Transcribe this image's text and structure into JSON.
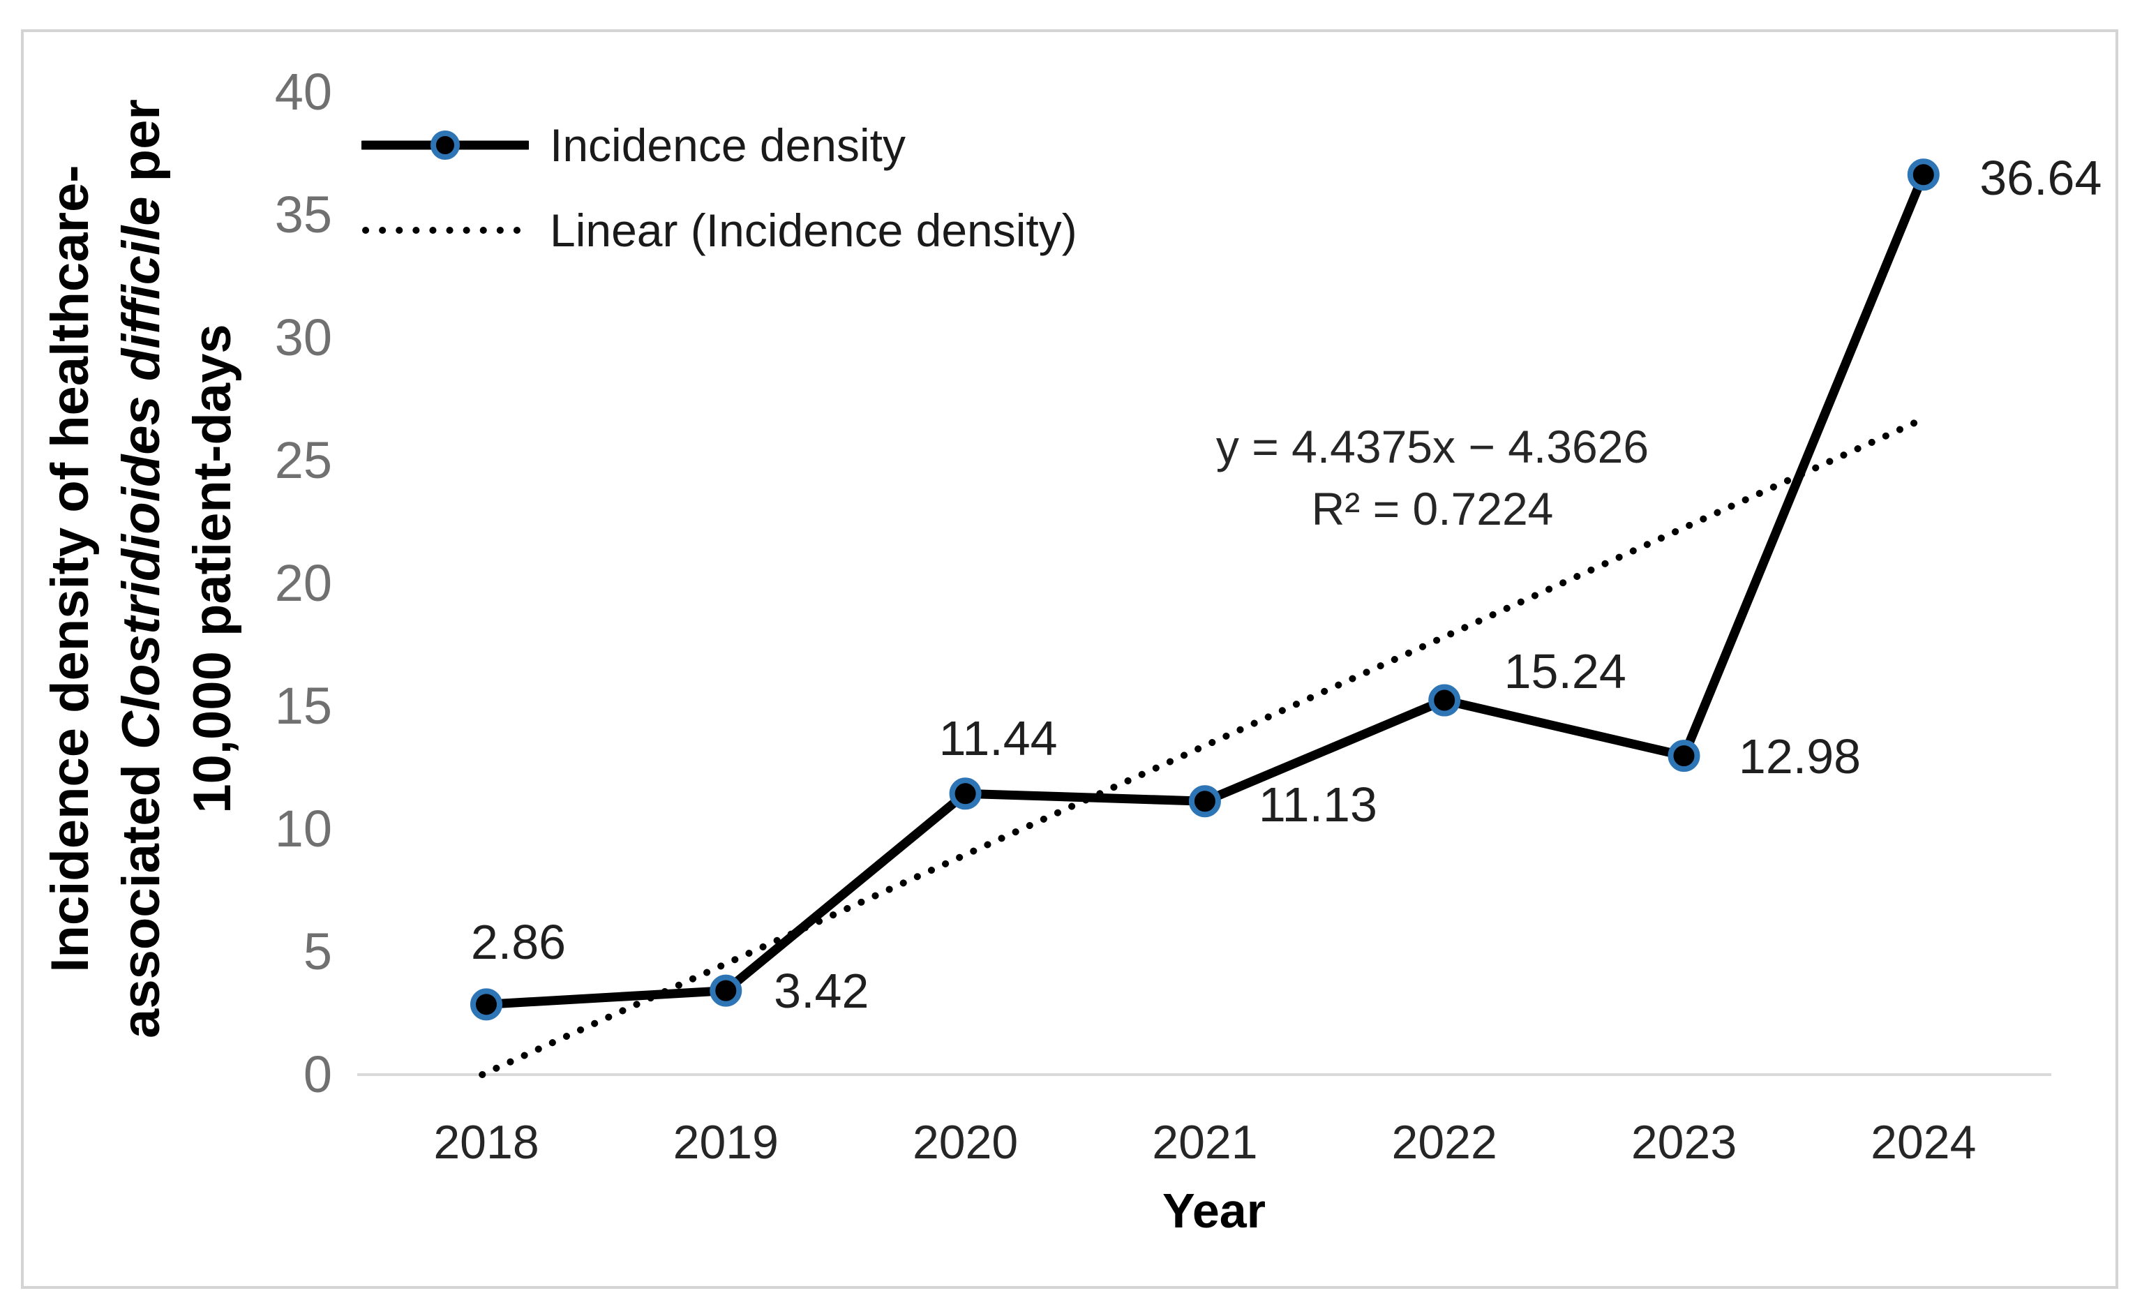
{
  "figure": {
    "background": "#FFFFFF",
    "border_color": "#D4D4D4"
  },
  "chart_data": {
    "type": "line",
    "categories": [
      2018,
      2019,
      2020,
      2021,
      2022,
      2023,
      2024
    ],
    "series": [
      {
        "name": "Incidence density",
        "values": [
          2.86,
          3.42,
          11.44,
          11.13,
          15.24,
          12.98,
          36.64
        ]
      }
    ],
    "data_labels": [
      "2.86",
      "3.42",
      "11.44",
      "11.13",
      "15.24",
      "12.98",
      "36.64"
    ],
    "trendline": {
      "name": "Linear (Incidence density)",
      "equation": "y = 4.4375x − 4.3626",
      "r_squared": "R² = 0.7224",
      "slope": 4.4375,
      "intercept": -4.3626,
      "style": "dotted"
    },
    "x_axis": {
      "title": "Year",
      "tick_labels": [
        "2018",
        "2019",
        "2020",
        "2021",
        "2022",
        "2023",
        "2024"
      ]
    },
    "y_axis": {
      "min": 0,
      "max": 40,
      "step": 5,
      "tick_labels": [
        "0",
        "5",
        "10",
        "15",
        "20",
        "25",
        "30",
        "35",
        "40"
      ],
      "title": {
        "line1": "Incidence density of healthcare-",
        "line2_pre": "associated ",
        "line2_italic": "Clostridioides difficile",
        "line2_post": " per",
        "line3": "10,000 patient-days"
      }
    },
    "legend_position": "top-left-inside",
    "grid": "off"
  },
  "colors": {
    "series_line": "#000000",
    "marker_fill": "#000000",
    "marker_ring": "#2E75B6",
    "trendline": "#000000",
    "baseline": "#D9D9D9",
    "y_tick_text": "#707070",
    "x_tick_text": "#262626",
    "data_label_text": "#1F1F1F",
    "legend_text": "#1A1A1A",
    "equation_text": "#262626",
    "axis_title_text": "#000000"
  }
}
